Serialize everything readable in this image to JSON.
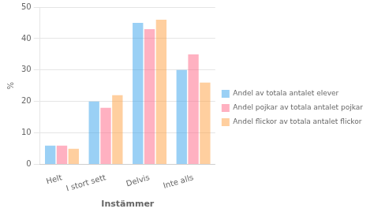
{
  "chart_data": {
    "type": "bar",
    "categories": [
      "Helt",
      "I stort sett",
      "Delvis",
      "Inte alls"
    ],
    "series": [
      {
        "name": "Andel av totala antalet elever",
        "values": [
          6,
          20,
          45,
          30
        ]
      },
      {
        "name": "Andel pojkar av totala antalet pojkar",
        "values": [
          6,
          18,
          43,
          35
        ]
      },
      {
        "name": "Andel flickor av totala antalet flickor",
        "values": [
          5,
          22,
          46,
          26
        ]
      }
    ],
    "xlabel": "Instämmer",
    "ylabel": "%",
    "ylim": [
      0,
      50
    ],
    "yticks": [
      0,
      10,
      20,
      30,
      40,
      50
    ],
    "grid": true,
    "legend": "right"
  }
}
